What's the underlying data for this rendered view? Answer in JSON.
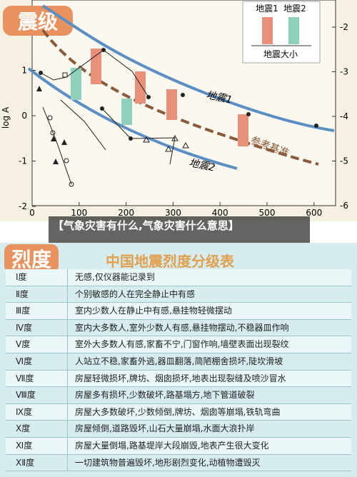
{
  "figure": {
    "badge": "震级",
    "legend": {
      "item1": "地震1",
      "item2": "地震2",
      "caption": "地震大小"
    },
    "y_axis_label": "log A",
    "curve1_label": "地震1",
    "curve2_label": "地震2",
    "reference_label": "参考基准",
    "left_ticks": [
      1,
      0,
      -1,
      -2
    ],
    "right_ticks": [
      -2,
      -3,
      -4,
      -5,
      -6
    ],
    "x_ticks": [
      0,
      100,
      200,
      300,
      400,
      500,
      600
    ]
  },
  "overlay": {
    "caption": "【气象灾害有什么,气象灾害什么意思】"
  },
  "table": {
    "badge": "烈度",
    "title": "中国地震烈度分级表",
    "rows": [
      [
        "Ⅰ度",
        "无感,仅仪器能记录到"
      ],
      [
        "Ⅱ度",
        "个别敏感的人在完全静止中有感"
      ],
      [
        "Ⅲ度",
        "室内少数人在静止中有感,悬挂物轻微摆动"
      ],
      [
        "Ⅳ度",
        "室内大多数人,室外少数人有感,悬挂物摆动,不稳器皿作响"
      ],
      [
        "Ⅴ度",
        "室外大多数人有感,家畜不宁,门窗作响,墙壁表面出现裂纹"
      ],
      [
        "Ⅵ度",
        "人站立不稳,家畜外逃,器皿翻落,简陋棚舍损坏,陡坎滑坡"
      ],
      [
        "Ⅶ度",
        "房屋轻微损坏,牌坊、烟囱损坏,地表出现裂缝及喷沙冒水"
      ],
      [
        "Ⅷ度",
        "房屋多有损坏,少数破坏,路基塌方,地下管道破裂"
      ],
      [
        "Ⅸ度",
        "房屋大多数破坏,少数倾倒,牌坊、烟囱等崩塌,铁轨弯曲"
      ],
      [
        "Ⅹ度",
        "房屋倾倒,道路毁坏,山石大量崩塌,水面大浪扑岸"
      ],
      [
        "Ⅺ度",
        "房屋大量倒塌,路基堤岸大段崩毁,地表产生很大变化"
      ],
      [
        "ⅩⅡ度",
        "一切建筑物普遍毁坏,地形剧烈变化,动植物遭毁灭"
      ]
    ]
  }
}
